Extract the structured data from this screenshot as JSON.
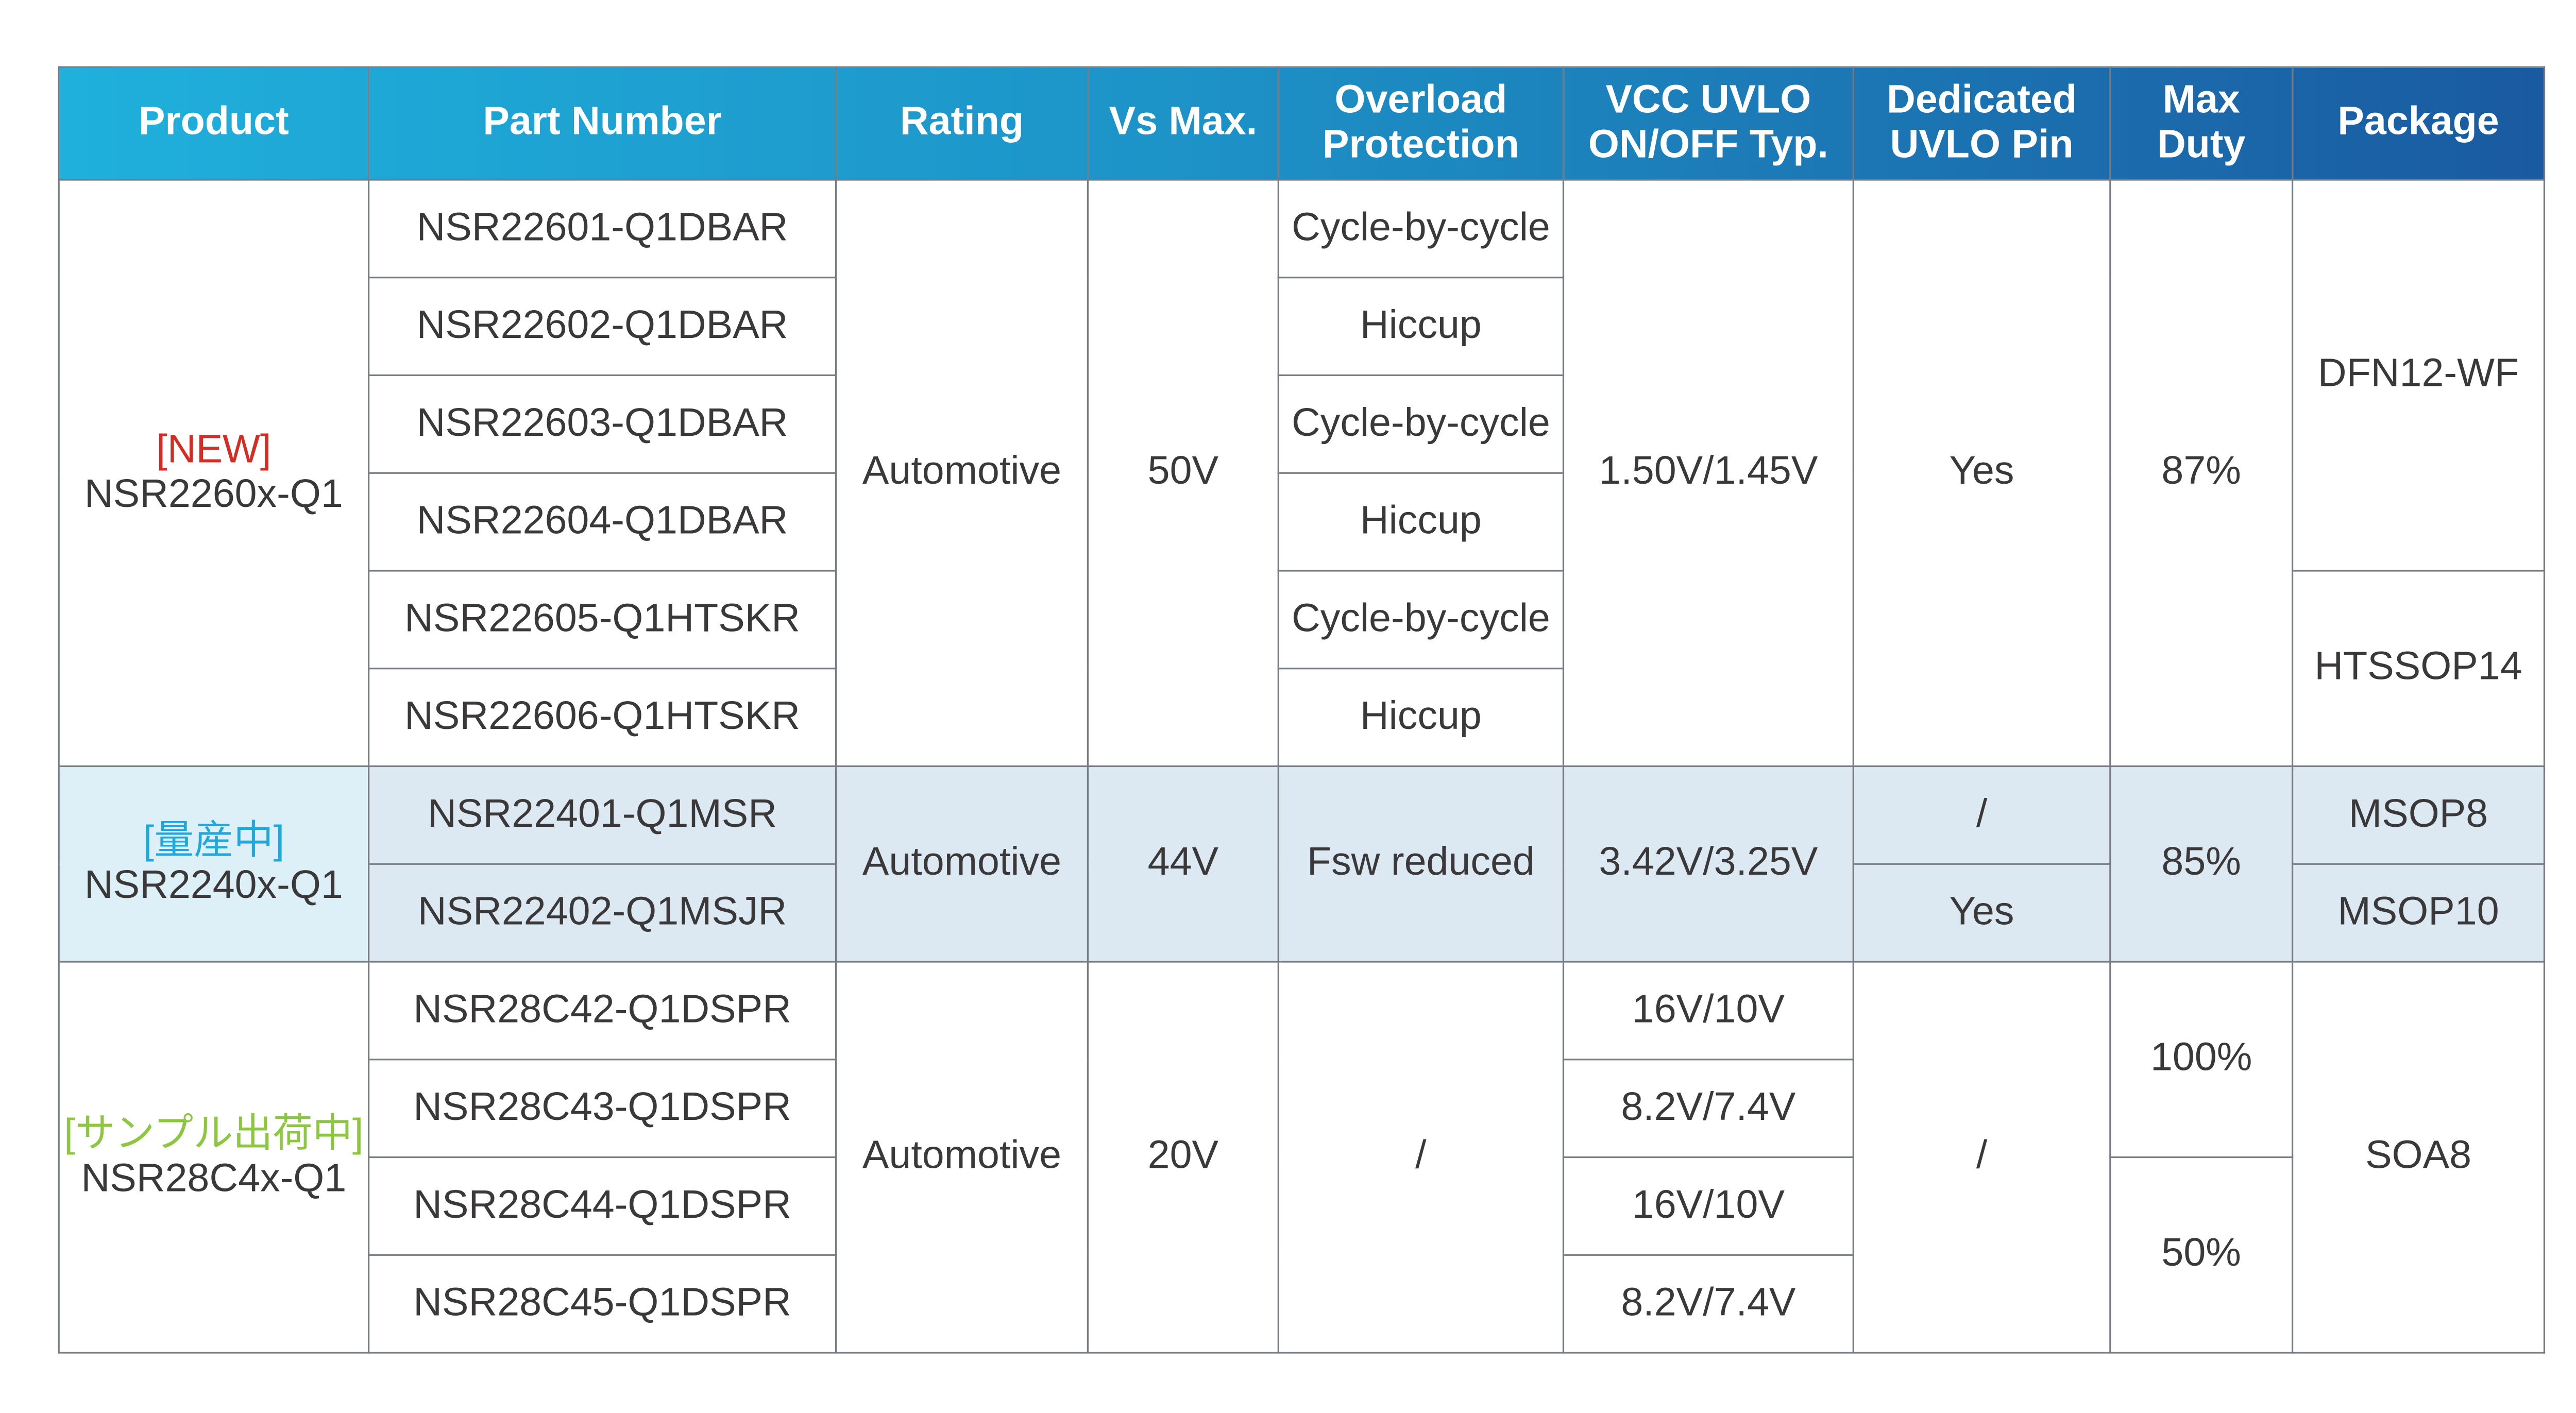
{
  "header": [
    "Product",
    "Part Number",
    "Rating",
    "Vs Max.",
    "Overload Protection",
    "VCC UVLO ON/OFF Typ.",
    "Dedicated UVLO Pin",
    "Max Duty",
    "Package"
  ],
  "colors": {
    "header_start": "#1fb0dc",
    "header_end": "#1a5aa0",
    "new": "#d42e24",
    "mass_production": "#20a7dc",
    "sample": "#8dc63f",
    "highlight_row": "#dce8f2"
  },
  "groups": [
    {
      "tag": "[NEW]",
      "product": "NSR2260x-Q1",
      "rating": "Automotive",
      "vs_max": "50V",
      "parts": [
        "NSR22601-Q1DBAR",
        "NSR22602-Q1DBAR",
        "NSR22603-Q1DBAR",
        "NSR22604-Q1DBAR",
        "NSR22605-Q1HTSKR",
        "NSR22606-Q1HTSKR"
      ],
      "overload": [
        "Cycle-by-cycle",
        "Hiccup",
        "Cycle-by-cycle",
        "Hiccup",
        "Cycle-by-cycle",
        "Hiccup"
      ],
      "uvlo": "1.50V/1.45V",
      "uvlo_pin": "Yes",
      "max_duty": "87%",
      "packages": [
        "DFN12-WF",
        "HTSSOP14"
      ]
    },
    {
      "tag": "[量産中]",
      "product": "NSR2240x-Q1",
      "rating": "Automotive",
      "vs_max": "44V",
      "parts": [
        "NSR22401-Q1MSR",
        "NSR22402-Q1MSJR"
      ],
      "overload": "Fsw reduced",
      "uvlo": "3.42V/3.25V",
      "uvlo_pin": [
        "/",
        "Yes"
      ],
      "max_duty": "85%",
      "packages": [
        "MSOP8",
        "MSOP10"
      ]
    },
    {
      "tag": "[サンプル出荷中]",
      "product": "NSR28C4x-Q1",
      "rating": "Automotive",
      "vs_max": "20V",
      "parts": [
        "NSR28C42-Q1DSPR",
        "NSR28C43-Q1DSPR",
        "NSR28C44-Q1DSPR",
        "NSR28C45-Q1DSPR"
      ],
      "overload": "/",
      "uvlo": [
        "16V/10V",
        "8.2V/7.4V",
        "16V/10V",
        "8.2V/7.4V"
      ],
      "uvlo_pin": "/",
      "max_duty": [
        "100%",
        "50%"
      ],
      "package": "SOA8"
    }
  ]
}
